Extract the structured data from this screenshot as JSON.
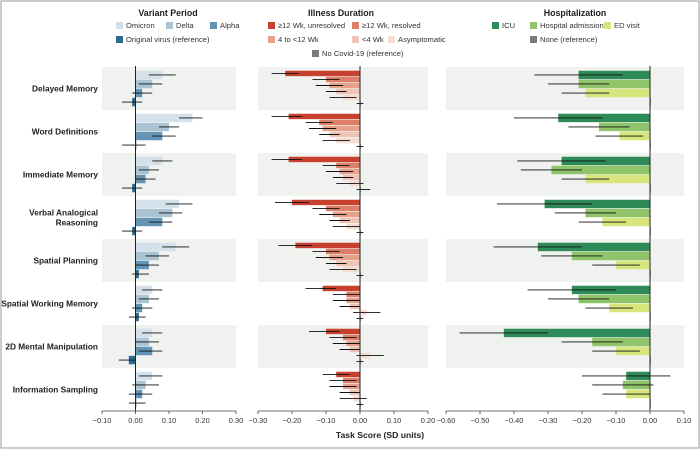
{
  "figure": {
    "x_title": "Task Score (SD units)",
    "outcomes": [
      "Delayed Memory",
      "Word Definitions",
      "Immediate Memory",
      "Verbal Analogical Reasoning",
      "Spatial Planning",
      "Spatial Working Memory",
      "2D Mental Manipulation",
      "Information Sampling"
    ]
  },
  "chart_data": [
    {
      "type": "bar",
      "orientation": "horizontal",
      "title": "Variant Period",
      "xlim": [
        -0.1,
        0.3
      ],
      "xticks": [
        "−0.10",
        "0.00",
        "0.10",
        "0.20",
        "0.30"
      ],
      "legend": [
        "Omicron",
        "Delta",
        "Alpha",
        "Original virus (reference)"
      ],
      "colors": [
        "#d4e1ea",
        "#aac4d4",
        "#6494b4",
        "#2d6a8e"
      ],
      "categories": [
        "Delayed Memory",
        "Word Definitions",
        "Immediate Memory",
        "Verbal Analogical Reasoning",
        "Spatial Planning",
        "Spatial Working Memory",
        "2D Mental Manipulation",
        "Information Sampling"
      ],
      "series": [
        {
          "name": "Omicron",
          "values": [
            0.08,
            0.17,
            0.08,
            0.13,
            0.12,
            0.05,
            0.05,
            0.05
          ],
          "ci_low": [
            0.04,
            0.13,
            0.05,
            0.09,
            0.08,
            0.02,
            0.02,
            0.01
          ],
          "ci_high": [
            0.12,
            0.2,
            0.11,
            0.17,
            0.16,
            0.08,
            0.08,
            0.08
          ]
        },
        {
          "name": "Delta",
          "values": [
            0.05,
            0.1,
            0.04,
            0.11,
            0.07,
            0.04,
            0.04,
            0.03
          ],
          "ci_low": [
            0.01,
            0.07,
            0.01,
            0.07,
            0.03,
            0.01,
            0.0,
            -0.01
          ],
          "ci_high": [
            0.08,
            0.13,
            0.07,
            0.14,
            0.1,
            0.07,
            0.07,
            0.07
          ]
        },
        {
          "name": "Alpha",
          "values": [
            0.02,
            0.08,
            0.03,
            0.08,
            0.04,
            0.02,
            0.05,
            0.02
          ],
          "ci_low": [
            -0.01,
            0.05,
            0.0,
            0.04,
            0.0,
            -0.01,
            0.01,
            -0.02
          ],
          "ci_high": [
            0.05,
            0.12,
            0.06,
            0.11,
            0.07,
            0.05,
            0.08,
            0.05
          ]
        },
        {
          "name": "Original virus (reference)",
          "values": [
            -0.01,
            0.0,
            -0.01,
            -0.01,
            0.01,
            0.01,
            -0.02,
            0.0
          ],
          "ci_low": [
            -0.04,
            -0.04,
            -0.04,
            -0.04,
            -0.01,
            -0.02,
            -0.05,
            -0.02
          ],
          "ci_high": [
            0.02,
            0.03,
            0.02,
            0.02,
            0.04,
            0.03,
            0.0,
            0.03
          ]
        }
      ]
    },
    {
      "type": "bar",
      "orientation": "horizontal",
      "title": "Illness Duration",
      "xlim": [
        -0.3,
        0.2
      ],
      "xticks": [
        "−0.30",
        "−0.20",
        "−0.10",
        "0.00",
        "0.10",
        "0.20"
      ],
      "legend": [
        "≥12 Wk, unresolved",
        "≥12 Wk, resolved",
        "4 to <12 Wk",
        "<4 Wk",
        "Asymptomatic",
        "No Covid-19 (reference)"
      ],
      "colors": [
        "#c8412e",
        "#dc7e68",
        "#e7a18a",
        "#f0c4b4",
        "#f6ddd3",
        "#7a7a7a"
      ],
      "categories": [
        "Delayed Memory",
        "Word Definitions",
        "Immediate Memory",
        "Verbal Analogical Reasoning",
        "Spatial Planning",
        "Spatial Working Memory",
        "2D Mental Manipulation",
        "Information Sampling"
      ],
      "series": [
        {
          "name": "≥12 Wk, unresolved",
          "values": [
            -0.22,
            -0.21,
            -0.21,
            -0.2,
            -0.19,
            -0.11,
            -0.1,
            -0.07
          ],
          "ci_low": [
            -0.26,
            -0.26,
            -0.26,
            -0.25,
            -0.24,
            -0.16,
            -0.15,
            -0.11
          ],
          "ci_high": [
            -0.18,
            -0.17,
            -0.17,
            -0.15,
            -0.14,
            -0.07,
            -0.06,
            -0.03
          ]
        },
        {
          "name": "≥12 Wk, resolved",
          "values": [
            -0.1,
            -0.12,
            -0.07,
            -0.1,
            -0.1,
            -0.04,
            -0.05,
            -0.05
          ],
          "ci_low": [
            -0.14,
            -0.16,
            -0.11,
            -0.14,
            -0.14,
            -0.08,
            -0.09,
            -0.09
          ],
          "ci_high": [
            -0.06,
            -0.08,
            -0.03,
            -0.06,
            -0.06,
            0.0,
            -0.01,
            -0.01
          ]
        },
        {
          "name": "4 to <12 Wk",
          "values": [
            -0.09,
            -0.11,
            -0.06,
            -0.08,
            -0.09,
            -0.04,
            -0.04,
            -0.05
          ],
          "ci_low": [
            -0.13,
            -0.15,
            -0.1,
            -0.12,
            -0.13,
            -0.08,
            -0.08,
            -0.09
          ],
          "ci_high": [
            -0.05,
            -0.07,
            -0.02,
            -0.04,
            -0.05,
            0.0,
            0.0,
            -0.01
          ]
        },
        {
          "name": "<4 Wk",
          "values": [
            -0.07,
            -0.09,
            -0.05,
            -0.06,
            -0.07,
            -0.03,
            -0.03,
            -0.03
          ],
          "ci_low": [
            -0.1,
            -0.12,
            -0.08,
            -0.09,
            -0.1,
            -0.06,
            -0.06,
            -0.06
          ],
          "ci_high": [
            -0.04,
            -0.06,
            -0.02,
            -0.03,
            -0.04,
            0.0,
            0.0,
            0.0
          ]
        },
        {
          "name": "Asymptomatic",
          "values": [
            -0.05,
            -0.07,
            -0.03,
            -0.04,
            -0.05,
            0.02,
            0.03,
            -0.02
          ],
          "ci_low": [
            -0.09,
            -0.11,
            -0.07,
            -0.08,
            -0.09,
            -0.02,
            -0.01,
            -0.06
          ],
          "ci_high": [
            -0.01,
            -0.03,
            0.01,
            0.0,
            -0.01,
            0.06,
            0.07,
            0.02
          ]
        },
        {
          "name": "No Covid-19 (reference)",
          "values": [
            0.0,
            0.0,
            0.0,
            0.0,
            0.0,
            0.0,
            0.0,
            0.0
          ],
          "ci_low": [
            -0.01,
            -0.01,
            -0.01,
            -0.01,
            -0.01,
            -0.01,
            -0.01,
            -0.01
          ],
          "ci_high": [
            0.01,
            0.01,
            0.03,
            0.01,
            0.01,
            0.01,
            0.01,
            0.01
          ]
        }
      ]
    },
    {
      "type": "bar",
      "orientation": "horizontal",
      "title": "Hospitalization",
      "xlim": [
        -0.6,
        0.1
      ],
      "xticks": [
        "−0.60",
        "−0.50",
        "−0.40",
        "−0.30",
        "−0.20",
        "−0.10",
        "0.00",
        "0.10"
      ],
      "legend": [
        "ICU",
        "Hospital admission",
        "ED visit",
        "None (reference)"
      ],
      "colors": [
        "#2e8b57",
        "#8fc46a",
        "#d7e57c",
        "#7a7a7a"
      ],
      "categories": [
        "Delayed Memory",
        "Word Definitions",
        "Immediate Memory",
        "Verbal Analogical Reasoning",
        "Spatial Planning",
        "Spatial Working Memory",
        "2D Mental Manipulation",
        "Information Sampling"
      ],
      "series": [
        {
          "name": "ICU",
          "values": [
            -0.21,
            -0.27,
            -0.26,
            -0.31,
            -0.33,
            -0.23,
            -0.43,
            -0.07
          ],
          "ci_low": [
            -0.34,
            -0.4,
            -0.39,
            -0.45,
            -0.46,
            -0.36,
            -0.56,
            -0.2
          ],
          "ci_high": [
            -0.08,
            -0.14,
            -0.13,
            -0.17,
            -0.2,
            -0.1,
            -0.3,
            0.06
          ]
        },
        {
          "name": "Hospital admission",
          "values": [
            -0.21,
            -0.15,
            -0.29,
            -0.19,
            -0.23,
            -0.21,
            -0.17,
            -0.08
          ],
          "ci_low": [
            -0.3,
            -0.24,
            -0.38,
            -0.28,
            -0.32,
            -0.3,
            -0.26,
            -0.17
          ],
          "ci_high": [
            -0.12,
            -0.06,
            -0.2,
            -0.1,
            -0.14,
            -0.12,
            -0.08,
            0.01
          ]
        },
        {
          "name": "ED visit",
          "values": [
            -0.19,
            -0.09,
            -0.19,
            -0.14,
            -0.1,
            -0.12,
            -0.1,
            -0.07
          ],
          "ci_low": [
            -0.26,
            -0.16,
            -0.26,
            -0.21,
            -0.17,
            -0.19,
            -0.17,
            -0.14
          ],
          "ci_high": [
            -0.12,
            -0.02,
            -0.12,
            -0.07,
            -0.03,
            -0.05,
            -0.03,
            0.0
          ]
        },
        {
          "name": "None (reference)",
          "values": [
            0.0,
            0.0,
            0.0,
            0.0,
            0.0,
            0.0,
            0.0,
            0.0
          ]
        }
      ]
    }
  ]
}
